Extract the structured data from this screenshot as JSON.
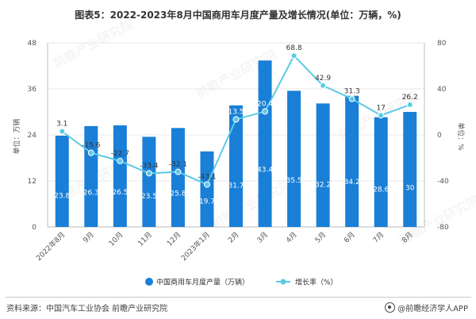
{
  "title": "图表5：2022-2023年8月中国商用车月度产量及增长情况(单位：万辆，%)",
  "source": "资料来源：中国汽车工业协会 前瞻产业研究院",
  "brand": "@前瞻经济学人APP",
  "watermark": "前瞻产业研究院",
  "colors": {
    "bar": "#1a7fd6",
    "line": "#5ccbe6",
    "axis": "#bdbdbd",
    "grid": "#e8e8e8"
  },
  "chart_data": {
    "type": "bar",
    "title": "图表5：2022-2023年8月中国商用车月度产量及增长情况(单位：万辆，%)",
    "categories": [
      "2022年8月",
      "9月",
      "10月",
      "11月",
      "12月",
      "2023年1月",
      "2月",
      "3月",
      "4月",
      "5月",
      "6月",
      "7月",
      "8月"
    ],
    "series": [
      {
        "name": "中国商用车月度产量（万辆）",
        "type": "bar",
        "axis": "left",
        "values": [
          23.8,
          26.3,
          26.5,
          23.5,
          25.8,
          19.7,
          31.7,
          43.4,
          35.5,
          32.2,
          34.2,
          28.6,
          30
        ],
        "labels": [
          "23.8",
          "26.3",
          "26.5",
          "23.5",
          "25.8",
          "19.7",
          "31.7",
          "43.4",
          "35.5",
          "32.2",
          "34.2",
          "28.6",
          "30"
        ]
      },
      {
        "name": "增长率（%）",
        "type": "line",
        "axis": "right",
        "values": [
          3.1,
          -15.6,
          -22.7,
          -33.4,
          -32.1,
          -43.1,
          13.5,
          20.4,
          68.8,
          42.9,
          31.3,
          17,
          26.2
        ],
        "labels": [
          "3.1",
          "-15.6",
          "-22.7",
          "-33.4",
          "-32.1",
          "-43.1",
          "13.5",
          "20.4",
          "68.8",
          "42.9",
          "31.3",
          "17",
          "26.2"
        ]
      }
    ],
    "y_left": {
      "label": "单位：万辆",
      "min": 0,
      "max": 48,
      "ticks": [
        "0",
        "12",
        "24",
        "36",
        "48"
      ]
    },
    "y_right": {
      "label": "单位：%",
      "min": -80,
      "max": 80,
      "ticks": [
        "-80",
        "-40",
        "0",
        "40",
        "80"
      ]
    },
    "legend": [
      "中国商用车月度产量（万辆）",
      "增长率（%）"
    ],
    "legend_position": "bottom"
  }
}
